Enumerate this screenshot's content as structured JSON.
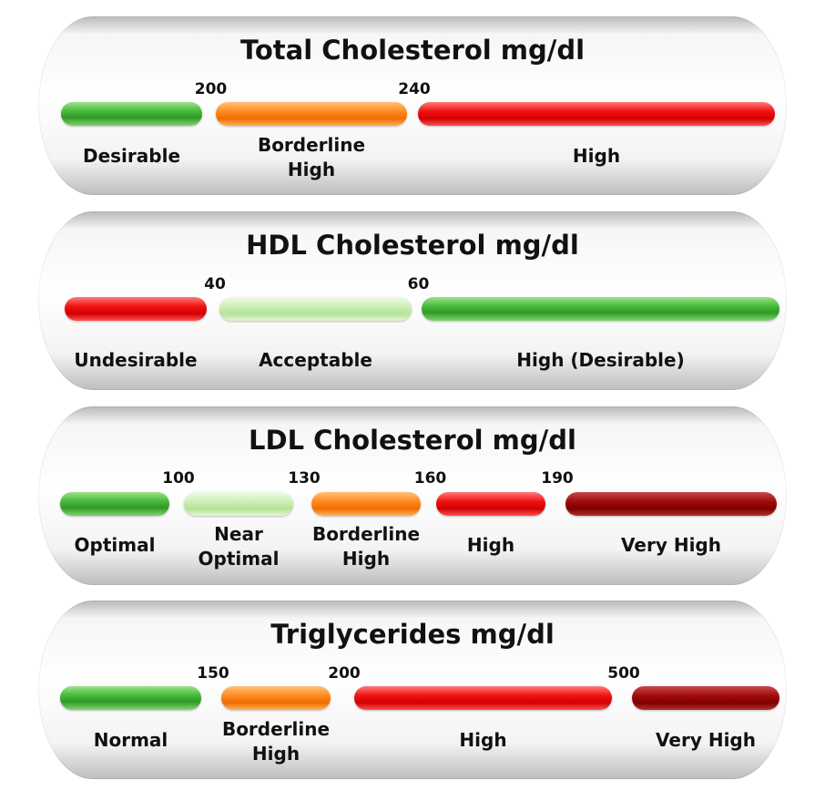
{
  "chart_data": [
    {
      "type": "bar",
      "title": "Total Cholesterol mg/dl",
      "thresholds": [
        "200",
        "240"
      ],
      "categories": [
        {
          "label": "Desirable",
          "lines": [
            "Desirable"
          ],
          "color": "#3cb034"
        },
        {
          "label": "Borderline High",
          "lines": [
            "Borderline",
            "High"
          ],
          "color": "#ff8a1f"
        },
        {
          "label": "High",
          "lines": [
            "High"
          ],
          "color": "#e00000"
        }
      ]
    },
    {
      "type": "bar",
      "title": "HDL Cholesterol mg/dl",
      "thresholds": [
        "40",
        "60"
      ],
      "categories": [
        {
          "label": "Undesirable",
          "lines": [
            "Undesirable"
          ],
          "color": "#e00000"
        },
        {
          "label": "Acceptable",
          "lines": [
            "Acceptable"
          ],
          "color": "#c6ecae"
        },
        {
          "label": "High (Desirable)",
          "lines": [
            "High (Desirable)"
          ],
          "color": "#3cb034"
        }
      ]
    },
    {
      "type": "bar",
      "title": "LDL Cholesterol mg/dl",
      "thresholds": [
        "100",
        "130",
        "160",
        "190"
      ],
      "categories": [
        {
          "label": "Optimal",
          "lines": [
            "Optimal"
          ],
          "color": "#3cb034"
        },
        {
          "label": "Near Optimal",
          "lines": [
            "Near",
            "Optimal"
          ],
          "color": "#c6ecae"
        },
        {
          "label": "Borderline High",
          "lines": [
            "Borderline",
            "High"
          ],
          "color": "#ff8a1f"
        },
        {
          "label": "High",
          "lines": [
            "High"
          ],
          "color": "#e00000"
        },
        {
          "label": "Very High",
          "lines": [
            "Very High"
          ],
          "color": "#8f0606"
        }
      ]
    },
    {
      "type": "bar",
      "title": "Triglycerides mg/dl",
      "thresholds": [
        "150",
        "200",
        "500"
      ],
      "categories": [
        {
          "label": "Normal",
          "lines": [
            "Normal"
          ],
          "color": "#3cb034"
        },
        {
          "label": "Borderline High",
          "lines": [
            "Borderline",
            "High"
          ],
          "color": "#ff8a1f"
        },
        {
          "label": "High",
          "lines": [
            "High"
          ],
          "color": "#e00000"
        },
        {
          "label": "Very High",
          "lines": [
            "Very High"
          ],
          "color": "#8f0606"
        }
      ]
    }
  ]
}
